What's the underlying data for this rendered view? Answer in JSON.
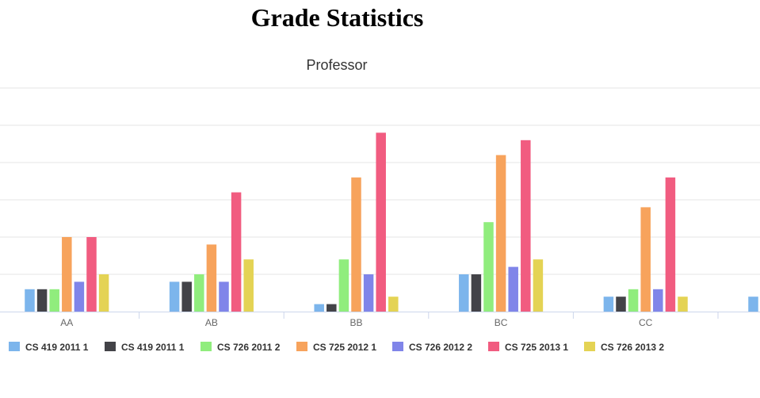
{
  "page": {
    "title": "Grade Statistics"
  },
  "chart_data": {
    "type": "bar",
    "title": "Professor",
    "xlabel": "",
    "ylabel": "",
    "categories": [
      "AA",
      "AB",
      "BB",
      "BC",
      "CC",
      ""
    ],
    "ylim": [
      0,
      30
    ],
    "grid": true,
    "legend_position": "bottom-left",
    "series": [
      {
        "name": "CS 419 2011 1",
        "color": "#7cb5ec",
        "values": [
          3,
          4,
          1,
          5,
          2,
          2
        ]
      },
      {
        "name": "CS 419 2011 1",
        "color": "#434348",
        "values": [
          3,
          4,
          1,
          5,
          2,
          0
        ]
      },
      {
        "name": "CS 726 2011 2",
        "color": "#90ed7d",
        "values": [
          3,
          5,
          7,
          12,
          3,
          0
        ]
      },
      {
        "name": "CS 725 2012 1",
        "color": "#f7a35c",
        "values": [
          10,
          9,
          18,
          21,
          14,
          0
        ]
      },
      {
        "name": "CS 726 2012 2",
        "color": "#8085e9",
        "values": [
          4,
          4,
          5,
          6,
          3,
          0
        ]
      },
      {
        "name": "CS 725 2013 1",
        "color": "#f15c80",
        "values": [
          10,
          16,
          24,
          23,
          18,
          0
        ]
      },
      {
        "name": "CS 726 2013 2",
        "color": "#e4d354",
        "values": [
          5,
          7,
          2,
          7,
          2,
          0
        ]
      }
    ]
  }
}
